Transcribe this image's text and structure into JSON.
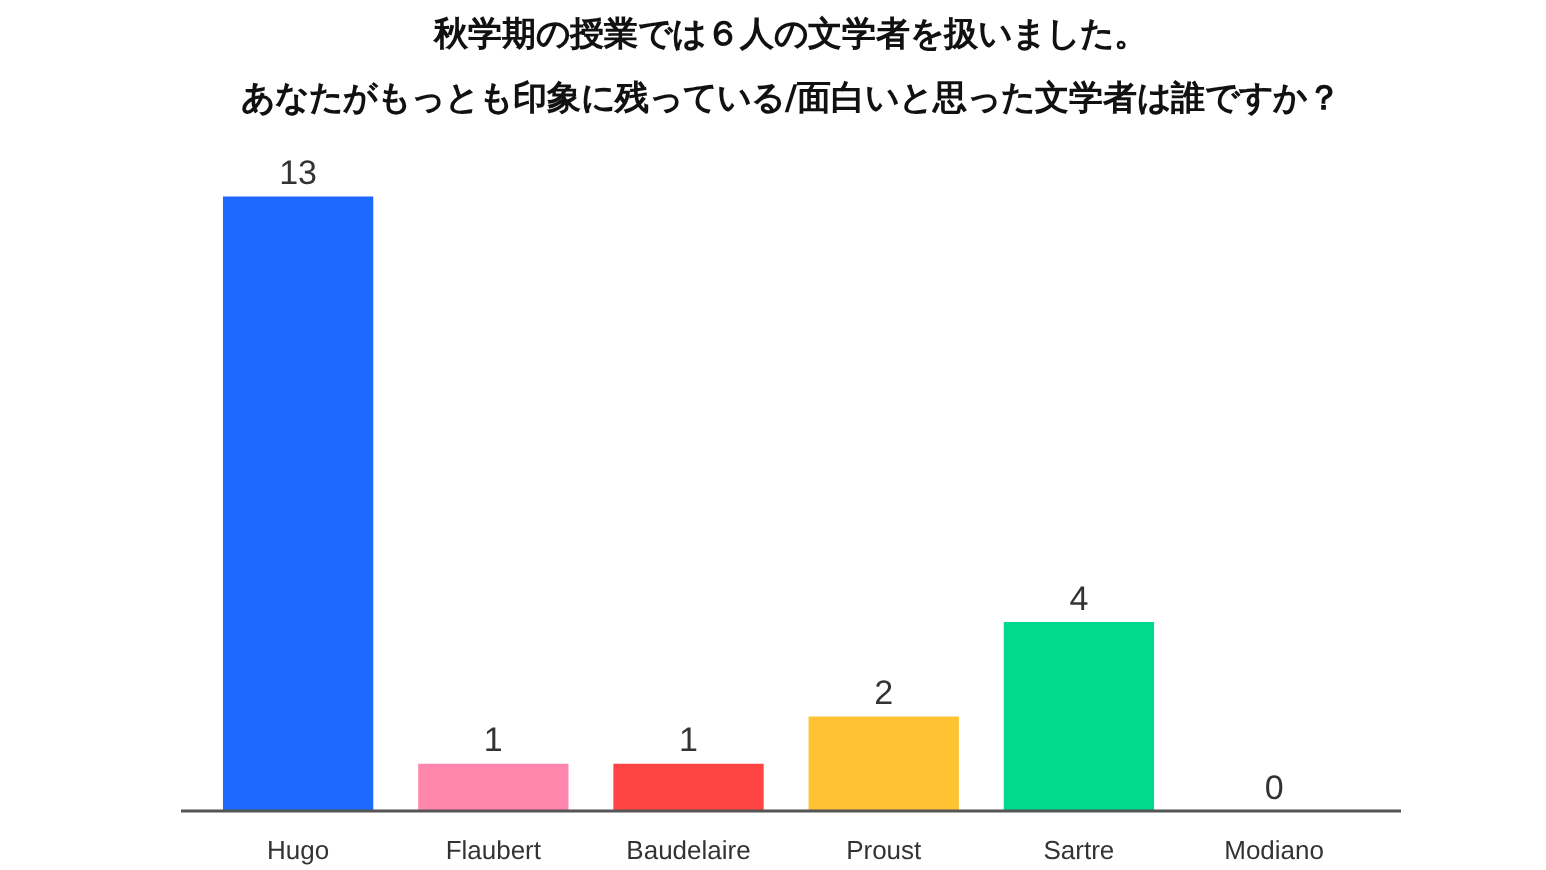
{
  "chart_data": {
    "type": "bar",
    "title": "秋学期の授業では６人の文学者を扱いました。",
    "subtitle": "あなたがもっとも印象に残っている/面白いと思った文学者は誰ですか？",
    "categories": [
      "Hugo",
      "Flaubert",
      "Baudelaire",
      "Proust",
      "Sartre",
      "Modiano"
    ],
    "values": [
      13,
      1,
      1,
      2,
      4,
      0
    ],
    "colors": [
      "#1e69ff",
      "#ff87ae",
      "#ff4444",
      "#ffc232",
      "#00d98e",
      "#a0a0a0"
    ],
    "data_labels": true,
    "grid": false
  }
}
